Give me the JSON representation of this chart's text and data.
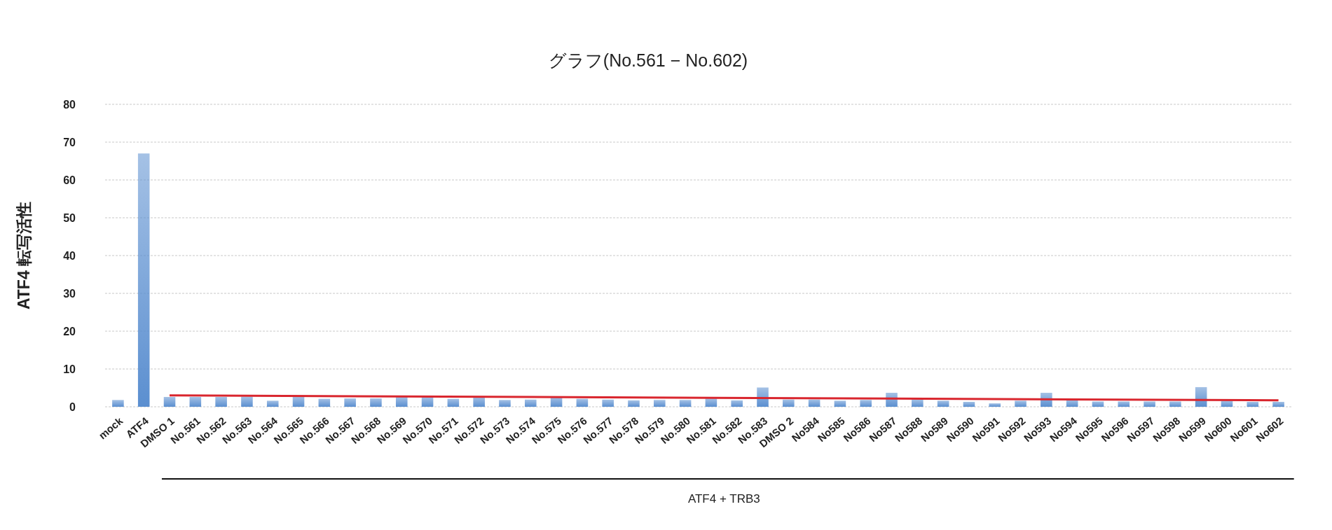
{
  "chart_data": {
    "type": "bar",
    "title": "グラフ(No.561 − No.602)",
    "ylabel": "ATF4 転写活性",
    "categories": [
      "mock",
      "ATF4",
      "DMSO 1",
      "No.561",
      "No.562",
      "No.563",
      "No.564",
      "No.565",
      "No.566",
      "No.567",
      "No.568",
      "No.569",
      "No.570",
      "No.571",
      "No.572",
      "No.573",
      "No.574",
      "No.575",
      "No.576",
      "No.577",
      "No.578",
      "No.579",
      "No.580",
      "No.581",
      "No.582",
      "No.583",
      "DMSO 2",
      "No584",
      "No585",
      "No586",
      "No587",
      "No588",
      "No589",
      "No590",
      "No591",
      "No592",
      "No593",
      "No594",
      "No595",
      "No596",
      "No597",
      "No598",
      "No599",
      "No600",
      "No601",
      "No602"
    ],
    "series": [
      {
        "color": "#5b8fd0",
        "values": [
          1.8,
          67,
          2.6,
          2.6,
          2.6,
          2.7,
          1.6,
          2.7,
          2.1,
          2.2,
          2.2,
          2.7,
          2.6,
          2.1,
          2.6,
          1.8,
          1.9,
          2.6,
          2.1,
          1.9,
          1.7,
          1.8,
          1.8,
          2.2,
          1.7,
          5.1,
          1.9,
          1.9,
          1.6,
          1.8,
          3.7,
          1.9,
          1.6,
          1.3,
          0.9,
          1.6,
          3.7,
          1.8,
          1.4,
          1.4,
          1.4,
          1.4,
          5.2,
          1.6,
          1.3,
          1.3
        ]
      },
      {
        "type": "line",
        "color": "#d9262e",
        "x": [
          "DMSO 1",
          "No602"
        ],
        "values": [
          3.0,
          1.7
        ]
      }
    ],
    "ylim": [
      0,
      80
    ],
    "yticks": [
      0,
      10,
      20,
      30,
      40,
      50,
      60,
      70,
      80
    ],
    "grid": "y",
    "annotations": [
      "ATF4 + TRB3"
    ]
  }
}
